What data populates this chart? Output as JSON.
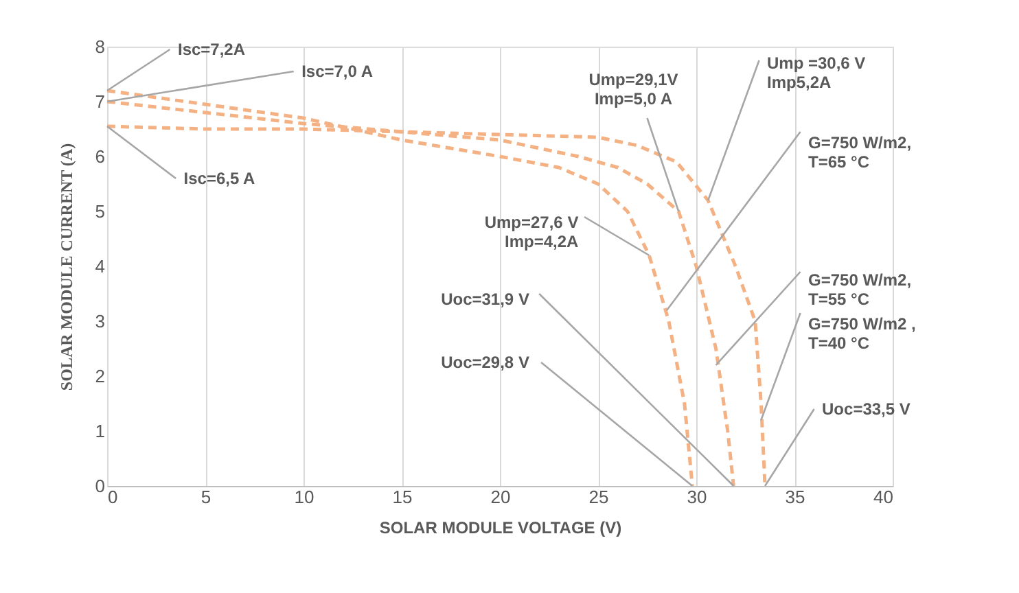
{
  "chart_data": {
    "type": "line",
    "xlabel": "SOLAR MODULE VOLTAGE (V)",
    "ylabel": "SOLAR MODULE CURRENT (A)",
    "xlim": [
      0,
      40
    ],
    "xticks": [
      0,
      5,
      10,
      15,
      20,
      25,
      30,
      35,
      40
    ],
    "ylim": [
      0,
      8
    ],
    "yticks": [
      0,
      1,
      2,
      3,
      4,
      5,
      6,
      7,
      8
    ],
    "grid": "x",
    "legend": false,
    "line_style": "dashed",
    "marker": "none",
    "series": [
      {
        "color": "#f4b183",
        "x": [
          0,
          5,
          10,
          15,
          20,
          23,
          25,
          26.5,
          27.6,
          28.6,
          29.4,
          29.8
        ],
        "values": [
          7.2,
          6.95,
          6.7,
          6.3,
          6.0,
          5.8,
          5.5,
          5.0,
          4.2,
          3.0,
          1.5,
          0
        ]
      },
      {
        "color": "#f4b183",
        "x": [
          0,
          5,
          10,
          15,
          20,
          24,
          26,
          27.5,
          29.1,
          30,
          31,
          31.6,
          31.9
        ],
        "values": [
          7.0,
          6.8,
          6.6,
          6.45,
          6.3,
          6.0,
          5.8,
          5.5,
          5.0,
          4.0,
          2.5,
          1.0,
          0
        ]
      },
      {
        "color": "#f4b183",
        "x": [
          0,
          5,
          10,
          15,
          20,
          25,
          27,
          29,
          30.6,
          32,
          33,
          33.3,
          33.5
        ],
        "values": [
          6.55,
          6.5,
          6.5,
          6.45,
          6.4,
          6.35,
          6.2,
          5.9,
          5.2,
          4.0,
          3.0,
          1.5,
          0
        ]
      }
    ],
    "annotations": [
      {
        "text": "Isc=7,2A",
        "x": 0,
        "y": 7.2
      },
      {
        "text": "Isc=7,0 A",
        "x": 0,
        "y": 7.0
      },
      {
        "text": "Isc=6,5 A",
        "x": 0,
        "y": 6.55
      },
      {
        "text": "Ump=27,6 V\nImp=4,2A",
        "x": 27.6,
        "y": 4.2
      },
      {
        "text": "Ump=29,1V\nImp=5,0 A",
        "x": 29.1,
        "y": 5.0
      },
      {
        "text": "Ump =30,6 V\nImp5,2A",
        "x": 30.6,
        "y": 5.2
      },
      {
        "text": "G=750 W/m2,\nT=65 °C",
        "x": 28.5,
        "y": 3.2
      },
      {
        "text": "G=750 W/m2,\nT=55 °C",
        "x": 31.0,
        "y": 2.2
      },
      {
        "text": "G=750 W/m2 ,\nT=40 °C",
        "x": 33.3,
        "y": 1.2
      },
      {
        "text": "Uoc=31,9 V",
        "x": 31.9,
        "y": 0
      },
      {
        "text": "Uoc=29,8 V",
        "x": 29.8,
        "y": 0
      },
      {
        "text": "Uoc=33,5 V",
        "x": 33.5,
        "y": 0
      }
    ]
  }
}
